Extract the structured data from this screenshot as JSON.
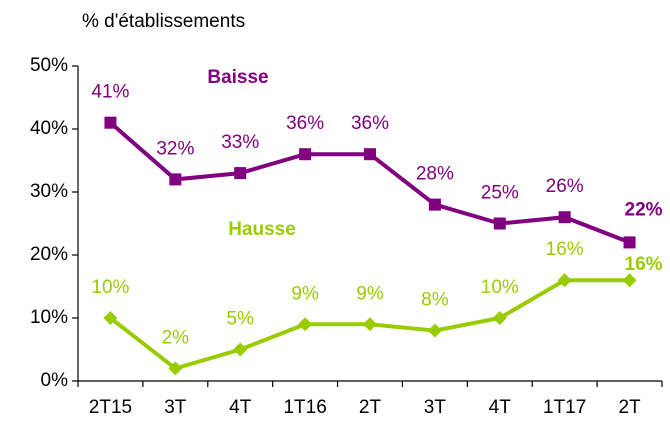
{
  "chart_data": {
    "type": "line",
    "y_axis_label": "% d'établissements",
    "categories": [
      "2T15",
      "3T",
      "4T",
      "1T16",
      "2T",
      "3T",
      "4T",
      "1T17",
      "2T"
    ],
    "series": [
      {
        "name": "Baisse",
        "color": "#800080",
        "marker": "square",
        "values": [
          41,
          32,
          33,
          36,
          36,
          28,
          25,
          26,
          22
        ],
        "value_labels": [
          "41%",
          "32%",
          "33%",
          "36%",
          "36%",
          "28%",
          "25%",
          "26%",
          "22%"
        ]
      },
      {
        "name": "Hausse",
        "color": "#99cc00",
        "marker": "diamond",
        "values": [
          10,
          2,
          5,
          9,
          9,
          8,
          10,
          16,
          16
        ],
        "value_labels": [
          "10%",
          "2%",
          "5%",
          "9%",
          "9%",
          "8%",
          "10%",
          "16%",
          "16%"
        ]
      }
    ],
    "ylim": [
      0,
      50
    ],
    "yticks": [
      {
        "value": 0,
        "label": "0%"
      },
      {
        "value": 10,
        "label": "10%"
      },
      {
        "value": 20,
        "label": "20%"
      },
      {
        "value": 30,
        "label": "30%"
      },
      {
        "value": 40,
        "label": "40%"
      },
      {
        "value": 50,
        "label": "50%"
      }
    ],
    "grid": false
  }
}
